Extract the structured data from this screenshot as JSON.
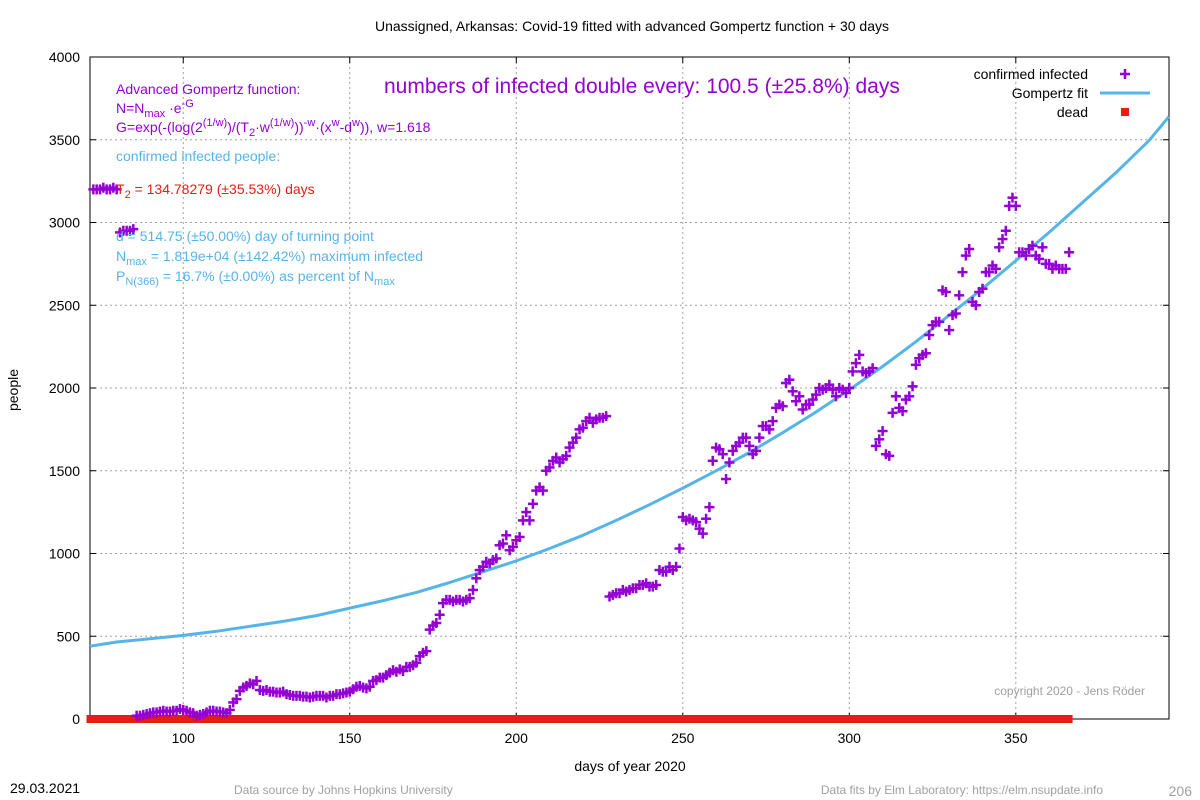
{
  "chart_data": {
    "type": "scatter",
    "title": "Unassigned,  Arkansas: Covid-19 fitted with advanced Gompertz function + 30 days",
    "xlabel": "days of year 2020",
    "ylabel": "people",
    "xlim": [
      72,
      396
    ],
    "ylim": [
      0,
      4000
    ],
    "x_ticks": [
      100,
      150,
      200,
      250,
      300,
      350
    ],
    "y_ticks": [
      0,
      500,
      1000,
      1500,
      2000,
      2500,
      3000,
      3500,
      4000
    ],
    "grid": true,
    "legend_placement": "top-right",
    "legend": [
      {
        "label": "confirmed infected",
        "marker": "plus",
        "color": "#9400d3"
      },
      {
        "label": "Gompertz fit",
        "marker": "line",
        "color": "#56b4e9"
      },
      {
        "label": "dead",
        "marker": "square",
        "color": "#e51e10"
      }
    ],
    "series": [
      {
        "name": "confirmed infected",
        "color": "#9400d3",
        "x": [
          73,
          74,
          75,
          76,
          77,
          78,
          79,
          80,
          81,
          82,
          83,
          84,
          85,
          86,
          87,
          88,
          89,
          90,
          91,
          92,
          93,
          94,
          95,
          96,
          97,
          98,
          99,
          100,
          101,
          102,
          103,
          104,
          105,
          106,
          107,
          108,
          109,
          110,
          111,
          112,
          113,
          114,
          115,
          116,
          117,
          118,
          119,
          120,
          121,
          122,
          123,
          124,
          125,
          126,
          127,
          128,
          129,
          130,
          131,
          132,
          133,
          134,
          135,
          136,
          137,
          138,
          139,
          140,
          141,
          142,
          143,
          144,
          145,
          146,
          147,
          148,
          149,
          150,
          151,
          152,
          153,
          154,
          155,
          156,
          157,
          158,
          159,
          160,
          161,
          162,
          163,
          164,
          165,
          166,
          167,
          168,
          169,
          170,
          171,
          172,
          173,
          174,
          175,
          176,
          177,
          178,
          179,
          180,
          181,
          182,
          183,
          184,
          185,
          186,
          187,
          188,
          189,
          190,
          191,
          192,
          193,
          194,
          195,
          196,
          197,
          198,
          199,
          200,
          201,
          202,
          203,
          204,
          205,
          206,
          207,
          208,
          209,
          210,
          211,
          212,
          213,
          214,
          215,
          216,
          217,
          218,
          219,
          220,
          221,
          222,
          223,
          224,
          225,
          226,
          227,
          228,
          229,
          230,
          231,
          232,
          233,
          234,
          235,
          236,
          237,
          238,
          239,
          240,
          241,
          242,
          243,
          244,
          245,
          246,
          247,
          248,
          249,
          250,
          251,
          252,
          253,
          254,
          255,
          256,
          257,
          258,
          259,
          260,
          261,
          262,
          263,
          264,
          265,
          266,
          267,
          268,
          269,
          270,
          271,
          272,
          273,
          274,
          275,
          276,
          277,
          278,
          279,
          280,
          281,
          282,
          283,
          284,
          285,
          286,
          287,
          288,
          289,
          290,
          291,
          292,
          293,
          294,
          295,
          296,
          297,
          298,
          299,
          300,
          301,
          302,
          303,
          304,
          305,
          306,
          307,
          308,
          309,
          310,
          311,
          312,
          313,
          314,
          315,
          316,
          317,
          318,
          319,
          320,
          321,
          322,
          323,
          324,
          325,
          326,
          327,
          328,
          329,
          330,
          331,
          332,
          333,
          334,
          335,
          336,
          337,
          338,
          339,
          340,
          341,
          342,
          343,
          344,
          345,
          346,
          347,
          348,
          349,
          350,
          351,
          352,
          353,
          354,
          355,
          356,
          357,
          358,
          359,
          360,
          361,
          362,
          363,
          364,
          365,
          366
        ],
        "y": [
          3200,
          3200,
          3200,
          3210,
          3200,
          3200,
          3210,
          3200,
          2940,
          2950,
          2950,
          2950,
          2960,
          20,
          20,
          25,
          30,
          35,
          40,
          40,
          45,
          50,
          45,
          45,
          50,
          50,
          60,
          55,
          50,
          40,
          35,
          20,
          25,
          30,
          40,
          50,
          50,
          45,
          45,
          40,
          35,
          55,
          100,
          120,
          170,
          190,
          200,
          215,
          210,
          230,
          175,
          170,
          175,
          165,
          165,
          160,
          160,
          165,
          150,
          145,
          140,
          140,
          140,
          135,
          135,
          130,
          135,
          140,
          140,
          140,
          130,
          140,
          140,
          150,
          150,
          155,
          160,
          165,
          180,
          195,
          200,
          190,
          185,
          195,
          230,
          235,
          250,
          250,
          265,
          280,
          295,
          285,
          300,
          290,
          315,
          315,
          325,
          340,
          380,
          400,
          410,
          540,
          565,
          580,
          630,
          700,
          720,
          720,
          710,
          720,
          720,
          710,
          720,
          730,
          780,
          850,
          900,
          920,
          950,
          940,
          960,
          970,
          1050,
          1060,
          1110,
          1020,
          1040,
          1080,
          1100,
          1200,
          1250,
          1200,
          1300,
          1380,
          1400,
          1380,
          1500,
          1520,
          1560,
          1580,
          1550,
          1570,
          1590,
          1640,
          1670,
          1700,
          1750,
          1760,
          1800,
          1820,
          1790,
          1810,
          1820,
          1820,
          1830,
          740,
          750,
          760,
          760,
          780,
          770,
          780,
          790,
          790,
          810,
          810,
          820,
          800,
          800,
          810,
          900,
          890,
          890,
          920,
          900,
          920,
          1030,
          1220,
          1200,
          1210,
          1200,
          1190,
          1150,
          1120,
          1210,
          1280,
          1560,
          1640,
          1630,
          1600,
          1450,
          1550,
          1620,
          1650,
          1670,
          1700,
          1700,
          1650,
          1600,
          1620,
          1700,
          1770,
          1770,
          1750,
          1800,
          1880,
          1900,
          1890,
          2030,
          2050,
          1980,
          1920,
          1950,
          1870,
          1900,
          1900,
          1930,
          1960,
          2000,
          1990,
          2000,
          2020,
          1990,
          1950,
          2000,
          1990,
          1970,
          2000,
          2100,
          2150,
          2200,
          2100,
          2090,
          2100,
          2120,
          1650,
          1690,
          1740,
          1600,
          1590,
          1850,
          1950,
          1880,
          1860,
          1930,
          1950,
          2010,
          2140,
          2180,
          2200,
          2210,
          2320,
          2380,
          2400,
          2400,
          2590,
          2580,
          2350,
          2440,
          2450,
          2560,
          2700,
          2800,
          2840,
          2520,
          2500,
          2580,
          2600,
          2700,
          2700,
          2740,
          2720,
          2850,
          2900,
          2950,
          3100,
          3150,
          3100,
          2820,
          2820,
          2800,
          2840,
          2860,
          2800,
          2780,
          2850,
          2750,
          2750,
          2720,
          2740,
          2720,
          2720,
          2720,
          2820
        ]
      },
      {
        "name": "Gompertz fit",
        "color": "#56b4e9",
        "x": [
          72,
          80,
          90,
          100,
          110,
          120,
          130,
          140,
          150,
          160,
          170,
          180,
          190,
          200,
          210,
          220,
          230,
          240,
          250,
          260,
          270,
          280,
          290,
          300,
          310,
          320,
          330,
          340,
          350,
          360,
          370,
          380,
          390,
          396
        ],
        "y": [
          440,
          465,
          485,
          505,
          530,
          560,
          590,
          625,
          670,
          715,
          765,
          825,
          890,
          955,
          1030,
          1110,
          1200,
          1295,
          1395,
          1500,
          1610,
          1730,
          1855,
          1990,
          2130,
          2280,
          2440,
          2600,
          2770,
          2940,
          3120,
          3300,
          3495,
          3640
        ]
      },
      {
        "name": "dead",
        "color": "#e51e10",
        "x_range": [
          72,
          366
        ],
        "y": 0
      }
    ],
    "annotations": {
      "gompertz_title": "Advanced Gompertz function:",
      "eq1_pre": "N=N",
      "eq1_sub": "max",
      "eq1_mid": " ·e",
      "eq1_sup": "-G",
      "eq2_a": " G=exp(-(log(2",
      "eq2_sup1": "(1/w)",
      "eq2_b": ")/(T",
      "eq2_sub": "2",
      "eq2_c": "·w",
      "eq2_sup2": "(1/w)",
      "eq2_d": "))",
      "eq2_sup3": "-w",
      "eq2_e": "·(x",
      "eq2_sup4": "w",
      "eq2_f": "-d",
      "eq2_sup5": "w",
      "eq2_g": ")), w=1.618",
      "doubling": "numbers of infected double every: 100.5 (±25.8%) days",
      "confirmed_header": "confirmed infected people:",
      "t2_pre": "T",
      "t2_sub": "2",
      "t2_post": " = 134.78279 (±35.53%) days",
      "d_line": "d = 514.75 (±50.00%) day of turning point",
      "nmax_pre": "N",
      "nmax_sub": "max",
      "nmax_post": " = 1.819e+04 (±142.42%) maximum infected",
      "p_pre": "P",
      "p_sub": "N(366)",
      "p_mid": " = 16.7% (±0.00%) as percent of N",
      "p_sub2": "max",
      "copyright": "copyright 2020 - Jens Röder"
    }
  },
  "footer": {
    "date": "29.03.2021",
    "source": "Data source by Johns Hopkins University",
    "fits": "Data fits by Elm Laboratory: https://elm.nsupdate.info",
    "page_number": "206"
  }
}
